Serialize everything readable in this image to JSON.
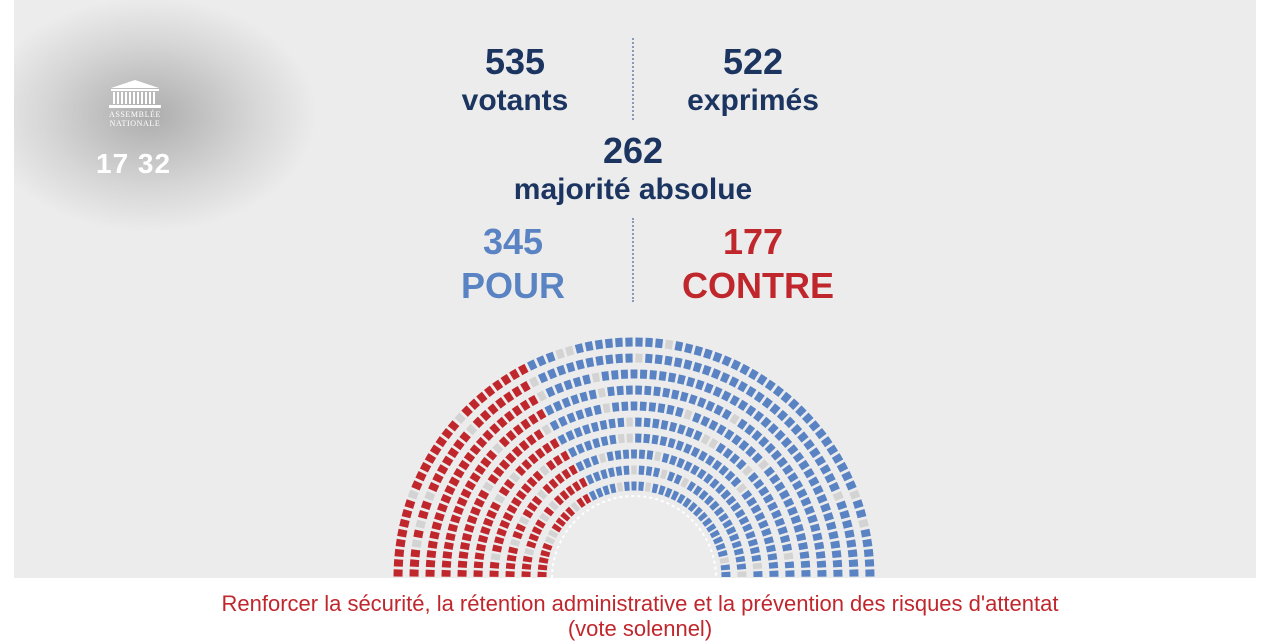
{
  "broadcast": {
    "logo_lines": [
      "ASSEMBLÉE",
      "NATIONALE"
    ],
    "clock": "17 32"
  },
  "vote": {
    "votants_value": "535",
    "votants_label": "votants",
    "exprimes_value": "522",
    "exprimes_label": "exprimés",
    "majorite_value": "262",
    "majorite_label": "majorité absolue",
    "pour_value": "345",
    "pour_label": "POUR",
    "contre_value": "177",
    "contre_label": "CONTRE"
  },
  "colors": {
    "pour": "#5a83c4",
    "contre": "#c0272d",
    "absent": "#d3d3d3",
    "text_navy": "#1c3560"
  },
  "caption": {
    "line1": "Renforcer la sécurité, la rétention administrative et la prévention des risques d'attentat",
    "line2": "(vote solennel)"
  },
  "chart_data": {
    "type": "hemicycle",
    "series": [
      {
        "name": "POUR",
        "value": 345
      },
      {
        "name": "CONTRE",
        "value": 177
      }
    ],
    "votants": 535,
    "exprimes": 522,
    "majorite_absolue": 262
  }
}
